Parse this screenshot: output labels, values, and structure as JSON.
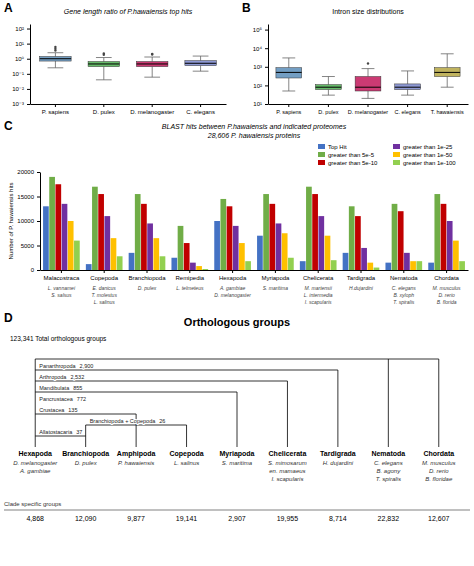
{
  "chart_data": [
    {
      "type": "box",
      "panel_label": "A",
      "title": "Gene length ratio of P.hawaiensis top hits",
      "categories": [
        "P. sapiens",
        "D. pulex",
        "D. melanogaster",
        "C. elegans"
      ],
      "colors": [
        "#5b8db8",
        "#4caf50",
        "#c2185b",
        "#7986cb"
      ],
      "boxes": [
        {
          "med": 1.0,
          "q1": 0.7,
          "q3": 1.4,
          "whislo": 0.25,
          "whishi": 2.5,
          "fliers": [
            3.5,
            4.5,
            6.0
          ]
        },
        {
          "med": 0.45,
          "q1": 0.3,
          "q3": 0.65,
          "whislo": 0.04,
          "whishi": 1.2,
          "fliers": [
            1.8,
            2.2
          ]
        },
        {
          "med": 0.45,
          "q1": 0.3,
          "q3": 0.65,
          "whislo": 0.06,
          "whishi": 1.3,
          "fliers": [
            1.9,
            2.1
          ]
        },
        {
          "med": 0.5,
          "q1": 0.35,
          "q3": 0.75,
          "whislo": 0.15,
          "whishi": 1.5,
          "fliers": []
        }
      ],
      "log": "y",
      "ylim": [
        0.001,
        200
      ],
      "yticks": [
        {
          "value": 0.001,
          "label": "10⁻³"
        },
        {
          "value": 0.01,
          "label": "10⁻²"
        },
        {
          "value": 0.1,
          "label": "10⁻¹"
        },
        {
          "value": 1.0,
          "label": "10⁰"
        },
        {
          "value": 10.0,
          "label": "10¹"
        },
        {
          "value": 100.0,
          "label": "10²"
        }
      ]
    },
    {
      "type": "box",
      "panel_label": "B",
      "title": "Intron size distributions",
      "categories": [
        "P. sapiens",
        "D. pulex",
        "D. melanogaster",
        "C. elegans",
        "T. hawaiensis"
      ],
      "colors": [
        "#5b8db8",
        "#4caf50",
        "#c2185b",
        "#7986cb",
        "#b5a642"
      ],
      "boxes": [
        {
          "med": 500,
          "q1": 250,
          "q3": 900,
          "whislo": 50,
          "whishi": 3000,
          "fliers": []
        },
        {
          "med": 80,
          "q1": 60,
          "q3": 110,
          "whislo": 30,
          "whishi": 300,
          "fliers": []
        },
        {
          "med": 80,
          "q1": 50,
          "q3": 300,
          "whislo": 20,
          "whishi": 800,
          "fliers": [
            1500
          ]
        },
        {
          "med": 80,
          "q1": 60,
          "q3": 120,
          "whislo": 30,
          "whishi": 600,
          "fliers": []
        },
        {
          "med": 500,
          "q1": 300,
          "q3": 900,
          "whislo": 80,
          "whishi": 5000,
          "fliers": []
        }
      ],
      "log": "y",
      "ylim": [
        10,
        200000
      ],
      "yticks": [
        {
          "value": 10,
          "label": "10¹"
        },
        {
          "value": 100,
          "label": "10²"
        },
        {
          "value": 1000,
          "label": "10³"
        },
        {
          "value": 10000,
          "label": "10⁴"
        },
        {
          "value": 100000,
          "label": "10⁵"
        }
      ]
    },
    {
      "type": "bar",
      "panel_label": "C",
      "title": "BLAST hits between P.hawaiensis and indicated proteomes",
      "subtitle": "28,606 P. hawaiensis proteins",
      "ylabel": "Number of P. hawaiensis hits",
      "categories": [
        "Malacostraca",
        "Copepoda",
        "Branchiopoda",
        "Remipedia",
        "Hexapoda",
        "Myriapoda",
        "Chelicerata",
        "Tardigrada",
        "Nematoda",
        "Chordata"
      ],
      "species": [
        [
          "L. vannamei",
          "S. salsus"
        ],
        [
          "E. danicus",
          "T. molestus",
          "L. salinus"
        ],
        [
          "D. pulex"
        ],
        [
          "L. telmeteus"
        ],
        [
          "A. gambiae",
          "D. melanogaster"
        ],
        [
          "S. maritima"
        ],
        [
          "M. martensii",
          "L. intermedia",
          "I. scapularis"
        ],
        [
          "H.dujardini"
        ],
        [
          "C. elegans",
          "B. xyloph",
          "T. spiralis"
        ],
        [
          "M. musculus",
          "D. rerio",
          "B. florida"
        ]
      ],
      "series": [
        {
          "name": "Top Hit",
          "color": "#4472c4",
          "values": [
            13000,
            1200,
            3500,
            2500,
            10000,
            7000,
            1800,
            3500,
            1500,
            1500
          ]
        },
        {
          "name": "greater than 5e-5",
          "color": "#70ad47",
          "values": [
            19000,
            17000,
            15500,
            9000,
            14500,
            15500,
            17000,
            13000,
            13500,
            15500
          ]
        },
        {
          "name": "greater than 5e-10",
          "color": "#c00000",
          "values": [
            17500,
            15500,
            13500,
            5500,
            13000,
            13500,
            15500,
            11000,
            12000,
            13500
          ]
        },
        {
          "name": "greater than 1e-25",
          "color": "#7030a0",
          "values": [
            13500,
            11000,
            9500,
            1500,
            9000,
            9500,
            11000,
            4500,
            3500,
            10000
          ]
        },
        {
          "name": "greater than 1e-50",
          "color": "#ffc000",
          "values": [
            10000,
            6500,
            6500,
            800,
            5500,
            7500,
            7000,
            1500,
            1800,
            6000
          ]
        },
        {
          "name": "greater than 1e-100",
          "color": "#92d050",
          "values": [
            6000,
            2800,
            2800,
            200,
            1800,
            2500,
            2000,
            500,
            1800,
            1800
          ]
        }
      ],
      "ylim": [
        0,
        20000
      ],
      "yticks": [
        0,
        5000,
        10000,
        15000,
        20000
      ],
      "legend": "upper right"
    },
    {
      "type": "tree",
      "panel_label": "D",
      "title": "Orthologous groups",
      "subtitle": "123,341 Total orthologous groups",
      "categories": [
        "Hexapoda",
        "Branchiopoda",
        "Amphipoda",
        "Copepoda",
        "Myriapoda",
        "Chelicerata",
        "Tardigrada",
        "Nematoda",
        "Chordata"
      ],
      "species": [
        [
          "D. melanogaster",
          "A. gambiae"
        ],
        [
          "D. pulex"
        ],
        [
          "P. hawaiensis"
        ],
        [
          "L. salinus"
        ],
        [
          "S. maritima"
        ],
        [
          "S. mimosarum",
          "en. mamaeus",
          "I. scapularis"
        ],
        [
          "H. dujardini"
        ],
        [
          "C. elegans",
          "B. agony",
          "T. spiralis"
        ],
        [
          "M. musculus",
          "D. rerio",
          "B. floridae"
        ]
      ],
      "nodes": [
        {
          "name": "Allatostacaria",
          "value": 37,
          "taxa": [
            "Hexapoda",
            "Branchiopoda"
          ]
        },
        {
          "name": "Branchiopoda + Copepoda",
          "value": 26,
          "taxa": [
            "Branchiopoda",
            "Copepoda"
          ]
        },
        {
          "name": "Crustacea",
          "value": 135,
          "taxa": [
            "Hexapoda",
            "Amphipoda"
          ]
        },
        {
          "name": "Pancrustacea",
          "value": 772,
          "taxa": [
            "Hexapoda"
          ]
        },
        {
          "name": "Mandibulata",
          "value": 855,
          "taxa": [
            "Hexapoda",
            "Myriapoda"
          ]
        },
        {
          "name": "Arthropoda",
          "value": 2532,
          "label": "2,532",
          "taxa": [
            "Hexapoda",
            "Chelicerata"
          ]
        },
        {
          "name": "Panarthropoda",
          "value": 2900,
          "label": "2,900",
          "taxa": [
            "Hexapoda",
            "Tardigrada"
          ]
        },
        {
          "name": null,
          "value": null,
          "taxa": [
            "Hexapoda",
            "Nematoda",
            "Chordata"
          ]
        }
      ],
      "clade_label": "Clade specific groups",
      "values": [
        4868,
        12090,
        9877,
        19141,
        2907,
        19955,
        8714,
        22832,
        12607
      ],
      "value_labels": [
        "4,868",
        "12,090",
        "9,877",
        "19,141",
        "2,907",
        "19,955",
        "8,714",
        "22,832",
        "12,607"
      ]
    }
  ]
}
